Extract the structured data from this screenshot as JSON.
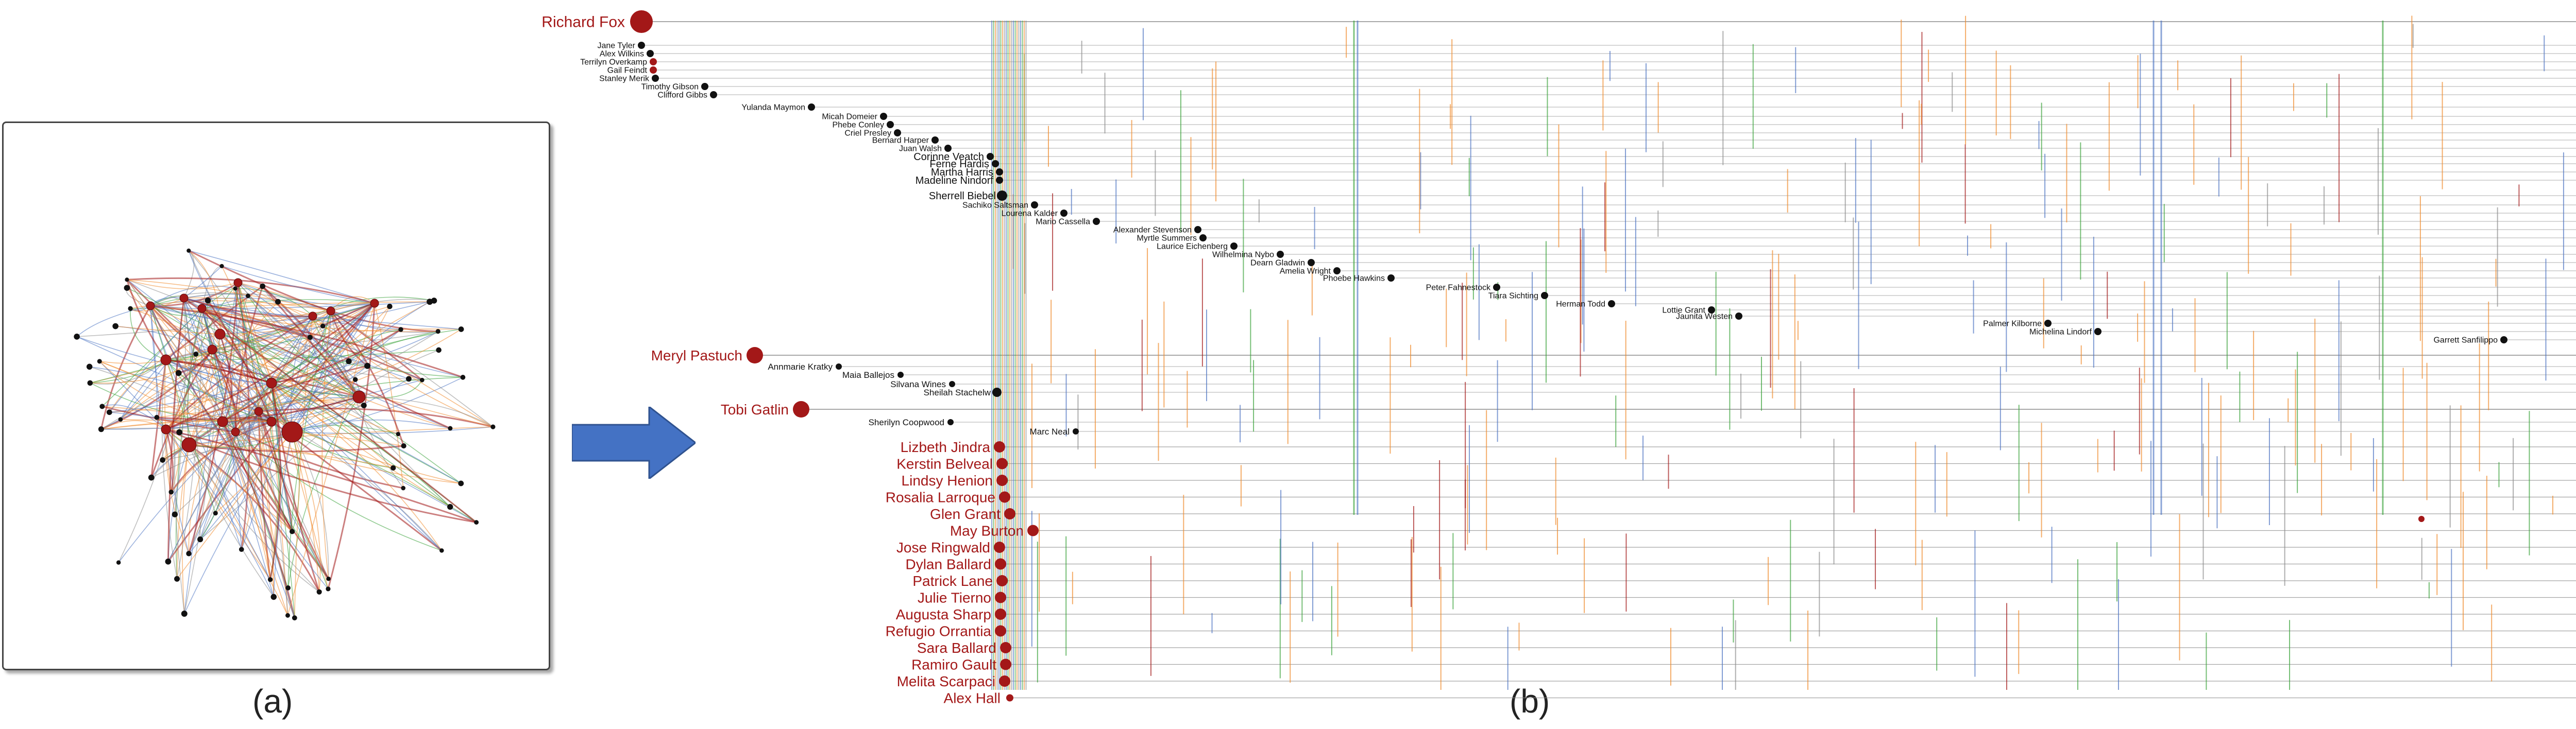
{
  "captions": {
    "a": "(a)",
    "b": "(b)"
  },
  "colors": {
    "red": "#a31818",
    "black": "#111111",
    "blue": "#4d74c2",
    "orange": "#f08a2b",
    "green": "#3aa33a",
    "gray": "#8c8c8c",
    "arrow": "#4472c4"
  },
  "icons": {
    "arrow": "right-arrow-icon"
  },
  "panel_b": {
    "top_name": "Richard Fox",
    "top_children": [
      "Jane Tyler",
      "Alex Wilkins",
      "Terrilyn Overkamp",
      "Gail Feindt",
      "Stanley Merik",
      "Timothy Gibson",
      "Clifford Gibbs",
      "Yulanda Maymon",
      "Micah Domeier",
      "Phebe Conley",
      "Criel Presley",
      "Bernard Harper",
      "Juan Walsh",
      "Corinne Veatch",
      "Ferne Hardis",
      "Martha Harris",
      "Madeline Nindorf",
      "Sherrell Biebel",
      "Sachiko Saltsman",
      "Lourena Kalder",
      "Mario Cassella",
      "Alexander Stevenson",
      "Myrtle Summers",
      "Laurice Eichenberg",
      "Wilhelmina Nybo",
      "Dearn Gladwin",
      "Amelia Wright",
      "Phoebe Hawkins",
      "Peter Fahnestock",
      "Tiara Sichting",
      "Herman Todd",
      "Lottie Grant",
      "Jaunita Westen",
      "Palmer Kilborne",
      "Michelina Lindorf",
      "Garrett Sanfilippo"
    ],
    "mid_name_1": "Meryl Pastuch",
    "mid_children_1": [
      "Annmarie Kratky",
      "Maia Ballejos",
      "Silvana Wines",
      "Sheilah Stachelw"
    ],
    "mid_name_2": "Tobi Gatlin",
    "mid_children_2": [
      "Sherilyn Coopwood",
      "Marc Neal"
    ],
    "bottom_names": [
      "Lizbeth Jindra",
      "Kerstin Belveal",
      "Lindsy Henion",
      "Rosalia Larroque",
      "Glen Grant",
      "May Burton",
      "Jose Ringwald",
      "Dylan Ballard",
      "Patrick Lane",
      "Julie Tierno",
      "Augusta Sharp",
      "Refugio Orrantia",
      "Sara Ballard",
      "Ramiro Gault",
      "Melita Scarpaci",
      "Alex Hall"
    ]
  }
}
